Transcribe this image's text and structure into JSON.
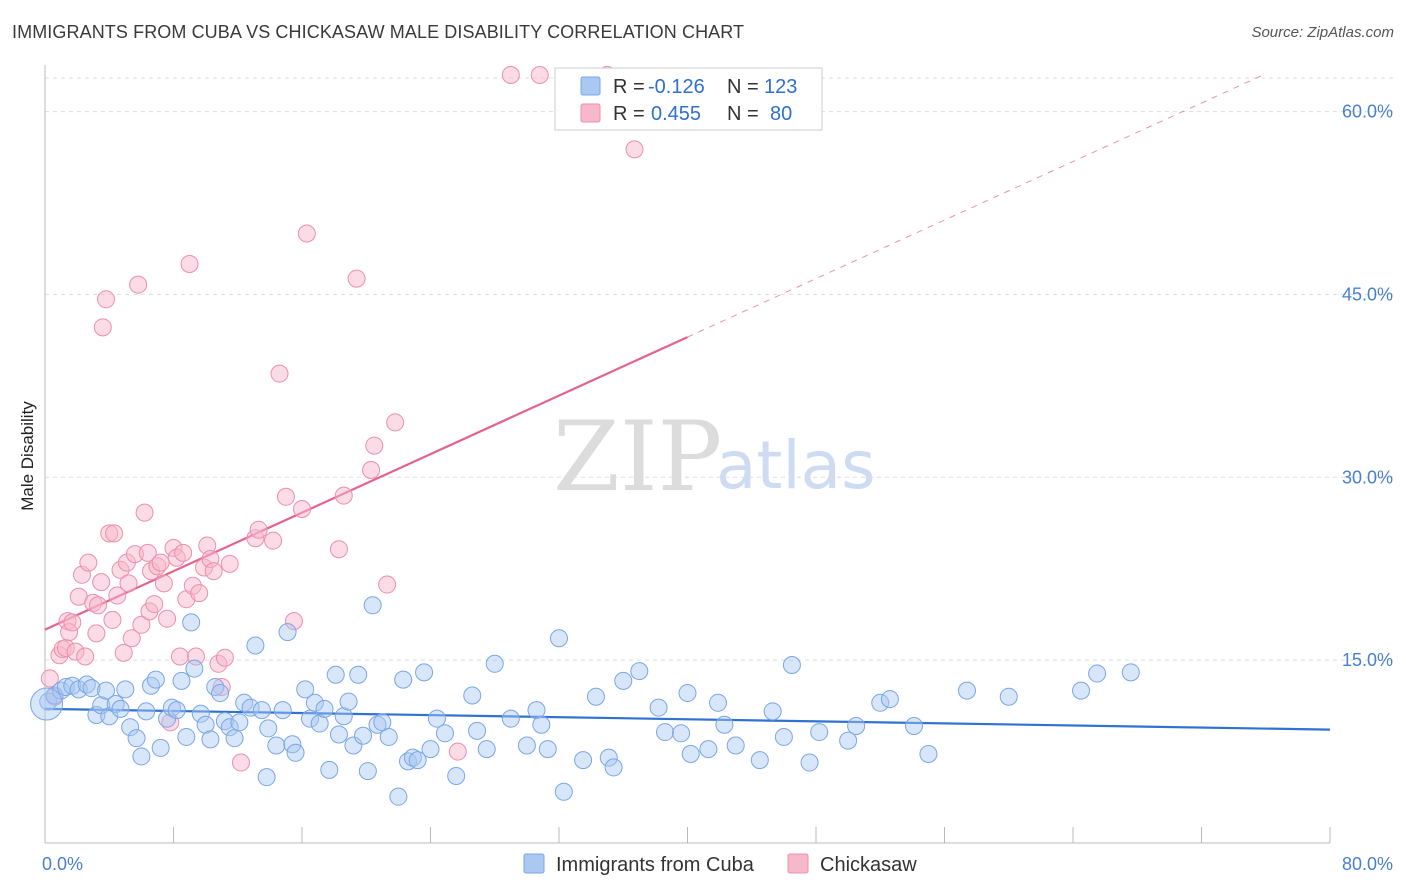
{
  "header": {
    "title": "IMMIGRANTS FROM CUBA VS CHICKASAW MALE DISABILITY CORRELATION CHART",
    "source": "Source: ZipAtlas.com"
  },
  "watermark": {
    "part1": "ZIP",
    "part2": "atlas"
  },
  "legend_top": {
    "rows": [
      {
        "r_label": "R =",
        "r_value": "-0.126",
        "n_label": "N =",
        "n_value": "123",
        "color": "#a9c8f2"
      },
      {
        "r_label": "R =",
        "r_value": "0.455",
        "n_label": "N =",
        "n_value": "80",
        "color": "#f7b8cb"
      }
    ]
  },
  "legend_bottom": {
    "items": [
      {
        "label": "Immigrants from Cuba",
        "color": "#a9c8f2"
      },
      {
        "label": "Chickasaw",
        "color": "#f7b8cb"
      }
    ]
  },
  "colors": {
    "cuba_fill": "#a9c8f2",
    "cuba_stroke": "#7aa6e6",
    "cuba_line": "#2f72d0",
    "chick_fill": "#f7b8cb",
    "chick_stroke": "#ec8fab",
    "chick_line": "#e4638e",
    "grid": "#dddddd",
    "tick_text": "#4a7fd0"
  },
  "chart_data": {
    "type": "scatter",
    "title": "IMMIGRANTS FROM CUBA VS CHICKASAW MALE DISABILITY CORRELATION CHART",
    "xlabel": "",
    "ylabel": "Male Disability",
    "xlim": [
      0,
      80
    ],
    "ylim": [
      0,
      63
    ],
    "x_tick_labels": [
      "0.0%",
      "80.0%"
    ],
    "y_ticks": [
      15,
      30,
      45,
      60
    ],
    "y_tick_labels": [
      "15.0%",
      "30.0%",
      "45.0%",
      "60.0%"
    ],
    "grid": "horizontal dashed",
    "legend_placement": "top-center and bottom-center",
    "series": [
      {
        "name": "Immigrants from Cuba",
        "R": -0.126,
        "N": 123,
        "trend": {
          "x": [
            0,
            80
          ],
          "y": [
            11.0,
            9.3
          ],
          "style": "solid"
        },
        "points": [
          [
            0.2,
            11.6
          ],
          [
            0.6,
            12.1
          ],
          [
            1.0,
            12.5
          ],
          [
            1.3,
            12.8
          ],
          [
            1.7,
            12.9
          ],
          [
            2.1,
            12.6
          ],
          [
            2.6,
            13.0
          ],
          [
            2.9,
            12.7
          ],
          [
            3.2,
            10.5
          ],
          [
            3.5,
            11.3
          ],
          [
            3.8,
            12.5
          ],
          [
            4.0,
            10.4
          ],
          [
            4.4,
            11.4
          ],
          [
            4.7,
            11.0
          ],
          [
            5.0,
            12.6
          ],
          [
            5.3,
            9.5
          ],
          [
            5.7,
            8.6
          ],
          [
            6.0,
            7.1
          ],
          [
            6.3,
            10.8
          ],
          [
            6.6,
            12.9
          ],
          [
            6.9,
            13.4
          ],
          [
            7.2,
            7.8
          ],
          [
            7.6,
            10.2
          ],
          [
            7.9,
            11.1
          ],
          [
            8.2,
            10.9
          ],
          [
            8.5,
            13.3
          ],
          [
            8.8,
            8.7
          ],
          [
            9.1,
            18.1
          ],
          [
            9.3,
            14.3
          ],
          [
            9.7,
            10.6
          ],
          [
            10.0,
            9.7
          ],
          [
            10.3,
            8.5
          ],
          [
            10.6,
            12.8
          ],
          [
            10.9,
            12.3
          ],
          [
            11.2,
            10.0
          ],
          [
            11.5,
            9.5
          ],
          [
            11.8,
            8.6
          ],
          [
            12.1,
            9.9
          ],
          [
            12.4,
            11.5
          ],
          [
            12.8,
            11.1
          ],
          [
            13.1,
            16.2
          ],
          [
            13.5,
            10.9
          ],
          [
            13.8,
            5.4
          ],
          [
            13.9,
            9.4
          ],
          [
            14.4,
            8.0
          ],
          [
            14.8,
            10.9
          ],
          [
            15.1,
            17.3
          ],
          [
            15.4,
            8.1
          ],
          [
            15.6,
            7.4
          ],
          [
            16.2,
            12.6
          ],
          [
            16.5,
            10.2
          ],
          [
            16.8,
            11.5
          ],
          [
            17.1,
            9.8
          ],
          [
            17.4,
            11.0
          ],
          [
            17.7,
            6.0
          ],
          [
            18.1,
            13.8
          ],
          [
            18.3,
            8.9
          ],
          [
            18.6,
            10.4
          ],
          [
            18.9,
            11.6
          ],
          [
            19.2,
            8.0
          ],
          [
            19.5,
            13.8
          ],
          [
            19.8,
            8.8
          ],
          [
            20.1,
            5.9
          ],
          [
            20.4,
            19.5
          ],
          [
            20.7,
            9.7
          ],
          [
            21.0,
            9.9
          ],
          [
            21.4,
            8.7
          ],
          [
            22.0,
            3.8
          ],
          [
            22.3,
            13.4
          ],
          [
            22.6,
            6.7
          ],
          [
            22.9,
            7.0
          ],
          [
            23.2,
            6.8
          ],
          [
            23.6,
            14.0
          ],
          [
            24.0,
            7.7
          ],
          [
            24.4,
            10.2
          ],
          [
            24.9,
            9.0
          ],
          [
            25.6,
            5.5
          ],
          [
            26.6,
            12.1
          ],
          [
            26.9,
            9.2
          ],
          [
            27.5,
            7.7
          ],
          [
            28.0,
            14.7
          ],
          [
            29.0,
            10.2
          ],
          [
            30.0,
            8.0
          ],
          [
            30.6,
            10.9
          ],
          [
            30.9,
            9.7
          ],
          [
            31.3,
            7.7
          ],
          [
            32.0,
            16.8
          ],
          [
            32.3,
            4.2
          ],
          [
            33.5,
            6.8
          ],
          [
            34.3,
            12.0
          ],
          [
            35.1,
            7.0
          ],
          [
            35.4,
            6.2
          ],
          [
            36.0,
            13.3
          ],
          [
            37.0,
            14.1
          ],
          [
            38.2,
            11.1
          ],
          [
            38.6,
            9.1
          ],
          [
            39.6,
            9.0
          ],
          [
            40.0,
            12.3
          ],
          [
            40.2,
            7.3
          ],
          [
            41.3,
            7.7
          ],
          [
            41.9,
            11.5
          ],
          [
            42.3,
            9.7
          ],
          [
            43.0,
            8.0
          ],
          [
            44.5,
            6.8
          ],
          [
            45.3,
            10.8
          ],
          [
            46.0,
            8.7
          ],
          [
            46.5,
            14.6
          ],
          [
            47.6,
            6.6
          ],
          [
            48.2,
            9.1
          ],
          [
            50.0,
            8.4
          ],
          [
            50.5,
            9.6
          ],
          [
            52.0,
            11.5
          ],
          [
            52.6,
            11.8
          ],
          [
            54.1,
            9.6
          ],
          [
            55.0,
            7.3
          ],
          [
            57.4,
            12.5
          ],
          [
            60.0,
            12.0
          ],
          [
            64.5,
            12.5
          ],
          [
            65.5,
            13.9
          ],
          [
            67.6,
            14.0
          ]
        ]
      },
      {
        "name": "Chickasaw",
        "R": 0.455,
        "N": 80,
        "trend": {
          "x": [
            0,
            40
          ],
          "y": [
            17.5,
            41.5
          ],
          "style": "solid",
          "extension_x": [
            40,
            80
          ],
          "extension_y": [
            41.5,
            65.5
          ],
          "extension_style": "dashed"
        },
        "points": [
          [
            0.3,
            13.5
          ],
          [
            0.6,
            12.0
          ],
          [
            0.9,
            15.4
          ],
          [
            1.1,
            15.9
          ],
          [
            1.3,
            16.0
          ],
          [
            1.4,
            18.2
          ],
          [
            1.5,
            17.3
          ],
          [
            1.7,
            18.1
          ],
          [
            1.9,
            15.7
          ],
          [
            2.1,
            20.2
          ],
          [
            2.3,
            22.0
          ],
          [
            2.5,
            15.3
          ],
          [
            2.7,
            23.0
          ],
          [
            3.0,
            19.7
          ],
          [
            3.2,
            17.2
          ],
          [
            3.3,
            19.5
          ],
          [
            3.5,
            21.4
          ],
          [
            3.6,
            42.3
          ],
          [
            3.8,
            44.6
          ],
          [
            4.0,
            25.4
          ],
          [
            4.2,
            18.3
          ],
          [
            4.3,
            25.4
          ],
          [
            4.5,
            20.3
          ],
          [
            4.7,
            22.4
          ],
          [
            4.9,
            15.6
          ],
          [
            5.1,
            23.0
          ],
          [
            5.2,
            21.3
          ],
          [
            5.4,
            16.8
          ],
          [
            5.6,
            23.7
          ],
          [
            5.8,
            45.8
          ],
          [
            6.0,
            17.9
          ],
          [
            6.2,
            27.1
          ],
          [
            6.4,
            23.8
          ],
          [
            6.5,
            19.0
          ],
          [
            6.6,
            22.3
          ],
          [
            6.8,
            19.6
          ],
          [
            7.0,
            22.7
          ],
          [
            7.2,
            23.0
          ],
          [
            7.4,
            21.3
          ],
          [
            7.6,
            18.4
          ],
          [
            7.8,
            9.9
          ],
          [
            8.0,
            24.2
          ],
          [
            8.2,
            23.4
          ],
          [
            8.4,
            15.3
          ],
          [
            8.6,
            23.8
          ],
          [
            8.8,
            20.0
          ],
          [
            9.0,
            47.5
          ],
          [
            9.2,
            21.1
          ],
          [
            9.4,
            15.3
          ],
          [
            9.6,
            20.5
          ],
          [
            9.9,
            22.6
          ],
          [
            10.1,
            24.4
          ],
          [
            10.3,
            23.3
          ],
          [
            10.5,
            22.3
          ],
          [
            10.8,
            14.7
          ],
          [
            11.0,
            12.8
          ],
          [
            11.2,
            15.2
          ],
          [
            11.5,
            22.9
          ],
          [
            12.2,
            6.6
          ],
          [
            13.1,
            25.0
          ],
          [
            13.3,
            25.7
          ],
          [
            14.2,
            24.8
          ],
          [
            14.6,
            38.5
          ],
          [
            15.0,
            28.4
          ],
          [
            15.5,
            18.2
          ],
          [
            16.0,
            27.4
          ],
          [
            16.3,
            50.0
          ],
          [
            18.3,
            24.1
          ],
          [
            18.6,
            28.5
          ],
          [
            19.4,
            46.3
          ],
          [
            20.3,
            30.6
          ],
          [
            20.5,
            32.6
          ],
          [
            21.3,
            21.2
          ],
          [
            21.8,
            34.5
          ],
          [
            25.7,
            7.5
          ],
          [
            29.0,
            63.0
          ],
          [
            30.8,
            63.0
          ],
          [
            33.1,
            60.0
          ],
          [
            35.0,
            63.0
          ],
          [
            36.7,
            56.9
          ]
        ]
      }
    ]
  }
}
